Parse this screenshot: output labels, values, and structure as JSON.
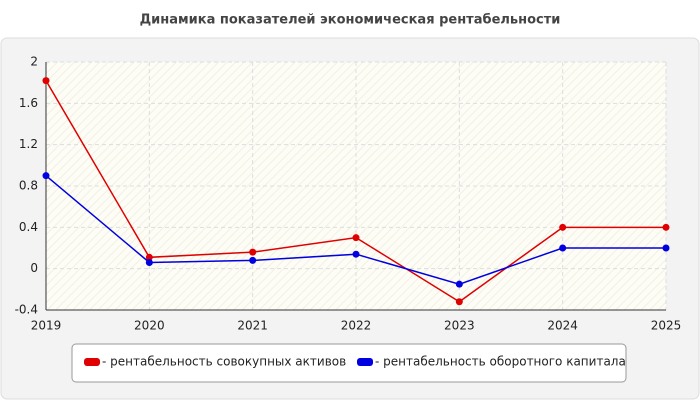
{
  "chart_data": {
    "type": "line",
    "title": "Динамика показателей экономическая рентабельности",
    "x": [
      2019,
      2020,
      2021,
      2022,
      2023,
      2024,
      2025
    ],
    "xlim": [
      2019,
      2025
    ],
    "xticks": [
      2019,
      2020,
      2021,
      2022,
      2023,
      2024,
      2025
    ],
    "ylim": [
      -0.4,
      2
    ],
    "yticks": [
      -0.4,
      0,
      0.4,
      0.8,
      1.2,
      1.6,
      2
    ],
    "grid": true,
    "legend": "bottom",
    "series": [
      {
        "name": "- рентабельность совокупных активов",
        "color": "#e00000",
        "values": [
          1.82,
          0.11,
          0.16,
          0.3,
          -0.32,
          0.4,
          0.4
        ]
      },
      {
        "name": "- рентабельность оборотного капитала",
        "color": "#0000e0",
        "values": [
          0.9,
          0.06,
          0.08,
          0.14,
          -0.15,
          0.2,
          0.2
        ]
      }
    ]
  }
}
